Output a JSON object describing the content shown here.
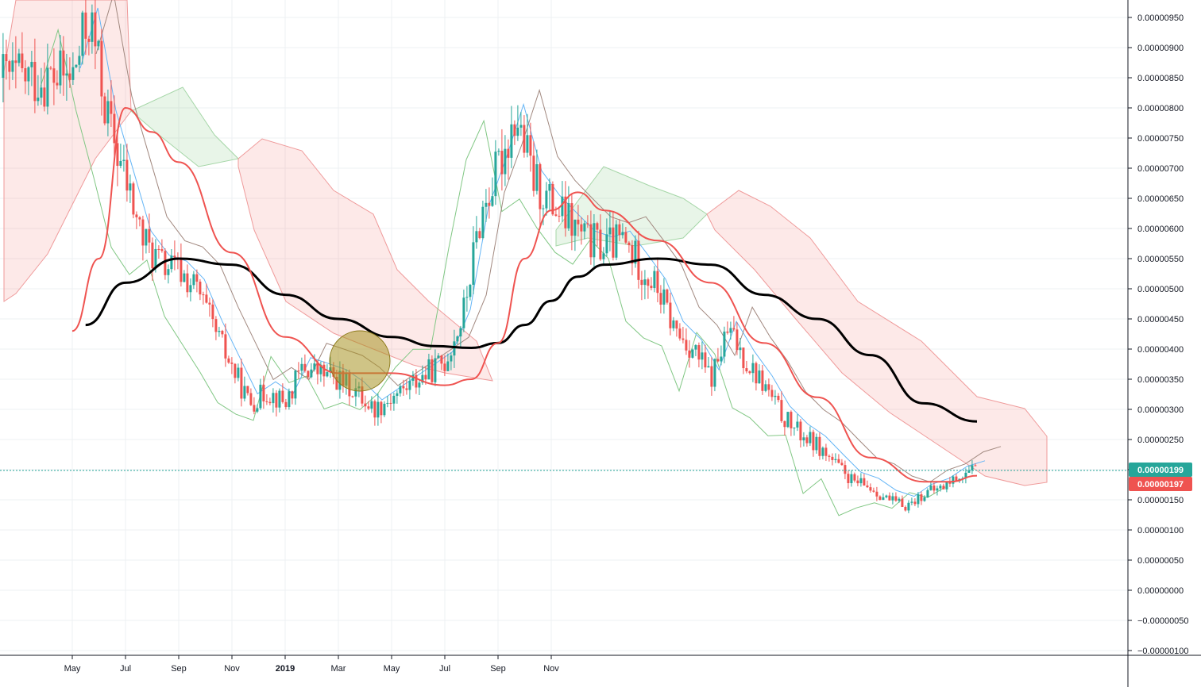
{
  "chart_data": {
    "type": "line",
    "title": "",
    "xlabel": "",
    "ylabel": "",
    "x_ticks": [
      "May",
      "Jul",
      "Sep",
      "Nov",
      "2019",
      "Mar",
      "May",
      "Jul",
      "Sep",
      "Nov"
    ],
    "x_tick_index": [
      0,
      2,
      4,
      6,
      8,
      10,
      12,
      14,
      16,
      18
    ],
    "y_ticks": [
      "0.00000950",
      "0.00000900",
      "0.00000850",
      "0.00000800",
      "0.00000750",
      "0.00000700",
      "0.00000650",
      "0.00000600",
      "0.00000550",
      "0.00000500",
      "0.00000450",
      "0.00000400",
      "0.00000350",
      "0.00000300",
      "0.00000250",
      "0.00000200",
      "0.00000150",
      "0.00000100",
      "0.00000050",
      "0.00000000",
      "−0.00000050",
      "−0.00000100"
    ],
    "ylim": [
      -1e-06,
      9.5e-06
    ],
    "grid": true,
    "last_price": {
      "label": "0.00000199",
      "value": 1.99e-06,
      "color": "#26a69a"
    },
    "ma_price": {
      "label": "0.00000197",
      "value": 1.97e-06,
      "color": "#ef5350"
    },
    "series": [
      {
        "style": "candles",
        "color_up": "#26a69a",
        "color_down": "#ef5350",
        "x": [
          0.0,
          0.33,
          0.67,
          1.0,
          1.33,
          1.67,
          2.0,
          2.33,
          2.67,
          3.0,
          3.33,
          3.67,
          4.0,
          4.33,
          4.67,
          5.0,
          5.33,
          5.67,
          6.0,
          6.33,
          6.67,
          7.0,
          7.33,
          7.67,
          8.0,
          8.33,
          8.67,
          9.0,
          9.33,
          9.67,
          10.0,
          10.33,
          10.67,
          11.0,
          11.33,
          11.67,
          12.0,
          12.33,
          12.67,
          13.0,
          13.33,
          13.67,
          14.0,
          14.33,
          14.67,
          15.0,
          15.33,
          15.67,
          16.0,
          16.33,
          16.67,
          17.0
        ],
        "y": [
          8.5e-06,
          9.5e-06,
          7.8e-06,
          6.8e-06,
          5.8e-06,
          5.4e-06,
          5.3e-06,
          5e-06,
          4.3e-06,
          3.7e-06,
          3.1e-06,
          3.3e-06,
          3.1e-06,
          3.7e-06,
          3.6e-06,
          3.5e-06,
          3.3e-06,
          3e-06,
          3.2e-06,
          3.4e-06,
          3.6e-06,
          3.8e-06,
          4.5e-06,
          6.2e-06,
          7e-06,
          7.9e-06,
          6.8e-06,
          6.4e-06,
          6.1e-06,
          5.8e-06,
          5.7e-06,
          5.8e-06,
          5.4e-06,
          5e-06,
          4.3e-06,
          4e-06,
          3.5e-06,
          4.3e-06,
          3.8e-06,
          3.4e-06,
          2.9e-06,
          2.6e-06,
          2.4e-06,
          2.1e-06,
          1.8e-06,
          1.7e-06,
          1.5e-06,
          1.4e-06,
          1.6e-06,
          1.7e-06,
          1.9e-06,
          1.99e-06
        ]
      },
      {
        "style": "line",
        "color": "#000000",
        "x": [
          0.25,
          1.0,
          2.0,
          3.0,
          4.0,
          5.0,
          6.0,
          6.8,
          7.5,
          8.0,
          8.5,
          9.0,
          9.5,
          10.0,
          11.0,
          12.0,
          13.0,
          14.0,
          15.0,
          16.0,
          17.0
        ],
        "y": [
          4.4e-06,
          5.1e-06,
          5.5e-06,
          5.4e-06,
          4.9e-06,
          4.5e-06,
          4.2e-06,
          4.05e-06,
          4.02e-06,
          4.1e-06,
          4.4e-06,
          4.8e-06,
          5.2e-06,
          5.4e-06,
          5.5e-06,
          5.4e-06,
          4.9e-06,
          4.5e-06,
          3.9e-06,
          3.1e-06,
          2.8e-06
        ]
      },
      {
        "style": "line",
        "color": "#ef5350",
        "x": [
          0.0,
          0.5,
          1.0,
          1.5,
          2.0,
          3.0,
          4.0,
          5.0,
          6.0,
          7.0,
          7.5,
          8.0,
          8.5,
          9.0,
          9.5,
          10.0,
          11.0,
          12.0,
          13.0,
          14.0,
          15.0,
          16.0,
          16.5,
          17.0
        ],
        "y": [
          4.3e-06,
          5.5e-06,
          8e-06,
          7.6e-06,
          7.1e-06,
          5.6e-06,
          4.2e-06,
          3.6e-06,
          3.6e-06,
          3.4e-06,
          3.5e-06,
          4.1e-06,
          5.5e-06,
          6.3e-06,
          6.6e-06,
          6.3e-06,
          5.8e-06,
          5.1e-06,
          4.1e-06,
          3.2e-06,
          2.2e-06,
          1.8e-06,
          1.8e-06,
          1.9e-06
        ]
      }
    ]
  }
}
